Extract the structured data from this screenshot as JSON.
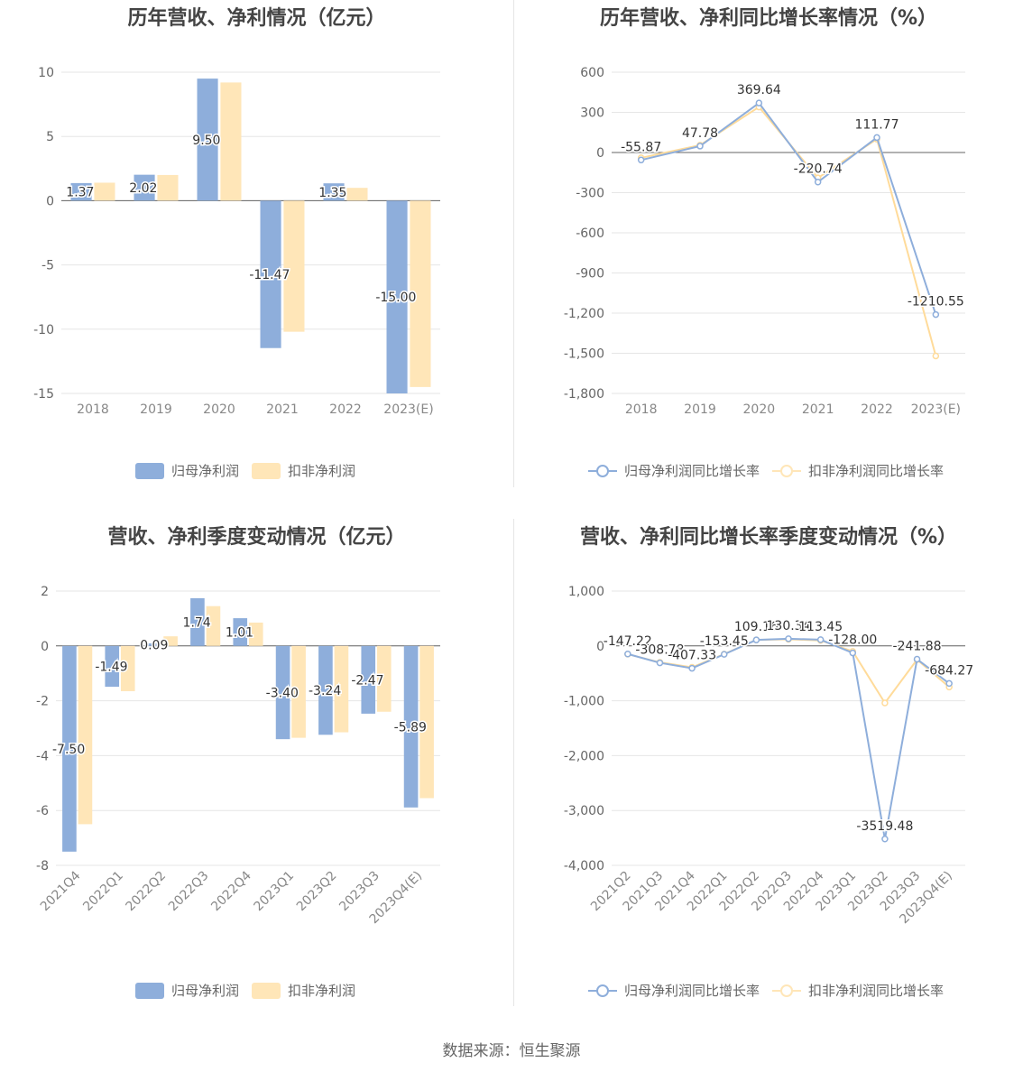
{
  "colors": {
    "primary": "#8eaedb",
    "secondary": "#ffdb9a",
    "secondary_light": "#ffe6b8"
  },
  "source": "数据来源：恒生聚源",
  "chart_data": [
    {
      "type": "bar",
      "title": "历年营收、净利情况（亿元）",
      "categories": [
        "2018",
        "2019",
        "2020",
        "2021",
        "2022",
        "2023(E)"
      ],
      "series": [
        {
          "name": "归母净利润",
          "values": [
            1.37,
            2.02,
            9.5,
            -11.47,
            1.35,
            -15.0
          ]
        },
        {
          "name": "扣非净利润",
          "values": [
            1.4,
            2.0,
            9.2,
            -10.2,
            1.0,
            -14.5
          ]
        }
      ],
      "data_labels": [
        "1.37",
        "2.02",
        "9.50",
        "-11.47",
        "1.35",
        "-15.00"
      ],
      "yticks": [
        10,
        5,
        0,
        -5,
        -10,
        -15
      ],
      "ylim": [
        -15,
        10
      ],
      "grid": true,
      "legend": "bottom"
    },
    {
      "type": "line",
      "title": "历年营收、净利同比增长率情况（%）",
      "categories": [
        "2018",
        "2019",
        "2020",
        "2021",
        "2022",
        "2023(E)"
      ],
      "series": [
        {
          "name": "归母净利润同比增长率",
          "values": [
            -55.87,
            47.78,
            369.64,
            -220.74,
            111.77,
            -1210.55
          ]
        },
        {
          "name": "扣非净利润同比增长率",
          "values": [
            -40,
            55,
            340,
            -190,
            100,
            -1520
          ]
        }
      ],
      "data_labels": [
        "-55.87",
        "47.78",
        "369.64",
        "-220.74",
        "111.77",
        "-1210.55"
      ],
      "yticks": [
        600,
        300,
        0,
        -300,
        -600,
        -900,
        -1200,
        -1500,
        -1800
      ],
      "ytick_labels": [
        "600",
        "300",
        "0",
        "-300",
        "-600",
        "-900",
        "-1,200",
        "-1,500",
        "-1,800"
      ],
      "ylim": [
        -1800,
        600
      ],
      "grid": true,
      "legend": "bottom"
    },
    {
      "type": "bar",
      "title": "营收、净利季度变动情况（亿元）",
      "categories": [
        "2021Q4",
        "2022Q1",
        "2022Q2",
        "2022Q3",
        "2022Q4",
        "2023Q1",
        "2023Q2",
        "2023Q3",
        "2023Q4(E)"
      ],
      "series": [
        {
          "name": "归母净利润",
          "values": [
            -7.5,
            -1.49,
            0.09,
            1.74,
            1.01,
            -3.4,
            -3.24,
            -2.47,
            -5.89
          ]
        },
        {
          "name": "扣非净利润",
          "values": [
            -6.5,
            -1.65,
            0.35,
            1.45,
            0.85,
            -3.35,
            -3.15,
            -2.4,
            -5.55
          ]
        }
      ],
      "data_labels": [
        "-7.50",
        "-1.49",
        "0.09",
        "1.74",
        "1.01",
        "-3.40",
        "-3.24",
        "-2.47",
        "-5.89"
      ],
      "yticks": [
        2,
        0,
        -2,
        -4,
        -6,
        -8
      ],
      "ylim": [
        -8,
        2
      ],
      "grid": true,
      "legend": "bottom"
    },
    {
      "type": "line",
      "title": "营收、净利同比增长率季度变动情况（%）",
      "categories": [
        "2021Q2",
        "2021Q3",
        "2021Q4",
        "2022Q1",
        "2022Q2",
        "2022Q3",
        "2022Q4",
        "2023Q1",
        "2023Q2",
        "2023Q3",
        "2023Q4(E)"
      ],
      "series": [
        {
          "name": "归母净利润同比增长率",
          "values": [
            -147.22,
            -308.78,
            -407.33,
            -153.45,
            109.16,
            130.34,
            113.45,
            -128.0,
            -3519.48,
            -241.88,
            -684.27
          ]
        },
        {
          "name": "扣非净利润同比增长率",
          "values": [
            -150,
            -300,
            -390,
            -150,
            110,
            120,
            100,
            -100,
            -1040,
            -250,
            -750
          ]
        }
      ],
      "data_labels": [
        "-147.22",
        "-308.78",
        "-407.33",
        "-153.45",
        "109.16",
        "130.34",
        "113.45",
        "-128.00",
        "-3519.48",
        "-241.88",
        "-684.27"
      ],
      "yticks": [
        1000,
        0,
        -1000,
        -2000,
        -3000,
        -4000
      ],
      "ytick_labels": [
        "1,000",
        "0",
        "-1,000",
        "-2,000",
        "-3,000",
        "-4,000"
      ],
      "ylim": [
        -4000,
        1000
      ],
      "grid": true,
      "legend": "bottom"
    }
  ]
}
